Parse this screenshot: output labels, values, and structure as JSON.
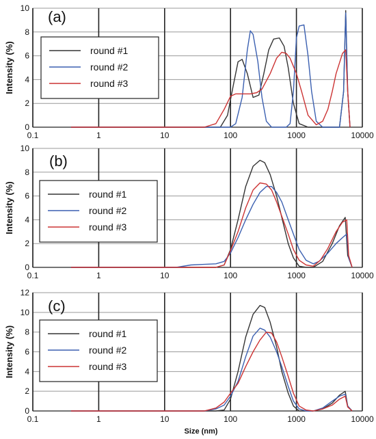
{
  "chart_data": [
    {
      "type": "line",
      "panel_label": "(a)",
      "ylabel": "Intensity (%)",
      "xlabel": "",
      "xscale": "log",
      "xlim": [
        0.1,
        10000
      ],
      "ylim": [
        0,
        10
      ],
      "x_ticks": [
        "0.1",
        "1",
        "10",
        "100",
        "1000",
        "10000"
      ],
      "y_ticks": [
        "0",
        "2",
        "4",
        "6",
        "8",
        "10"
      ],
      "grid": true,
      "legend_placement": "left",
      "series": [
        {
          "name": "round #1",
          "color": "#333333",
          "x": [
            0.38,
            40,
            70,
            90,
            110,
            130,
            150,
            180,
            220,
            270,
            320,
            380,
            450,
            550,
            650,
            750,
            900,
            1100,
            1500,
            2000,
            3000,
            4500,
            5200,
            5600,
            6000,
            6500
          ],
          "y": [
            0,
            0,
            0,
            1.0,
            3.5,
            5.5,
            5.7,
            4.5,
            2.5,
            2.7,
            4.5,
            6.5,
            7.4,
            7.5,
            6.8,
            5.0,
            2.0,
            0.3,
            0,
            0,
            0,
            0,
            3.0,
            9.8,
            3.0,
            0
          ]
        },
        {
          "name": "round #2",
          "color": "#3a5fb0",
          "x": [
            0.38,
            100,
            120,
            150,
            180,
            200,
            220,
            260,
            300,
            350,
            420,
            500,
            600,
            700,
            800,
            900,
            1000,
            1100,
            1300,
            1500,
            1700,
            2000,
            2500,
            4500,
            5200,
            5600,
            6000,
            6500
          ],
          "y": [
            0,
            0,
            0.3,
            2.5,
            6.5,
            8.1,
            7.8,
            5.5,
            2.5,
            0.5,
            0,
            0,
            0,
            0,
            0.3,
            3.0,
            7.5,
            8.5,
            8.6,
            6.0,
            3.0,
            0.5,
            0,
            0,
            3.0,
            9.6,
            3.0,
            0
          ]
        },
        {
          "name": "round #3",
          "color": "#cc3333",
          "x": [
            0.38,
            40,
            60,
            80,
            100,
            120,
            150,
            200,
            250,
            300,
            400,
            500,
            600,
            700,
            800,
            1000,
            1200,
            1500,
            2000,
            2500,
            3000,
            3500,
            4000,
            5000,
            5600,
            6000,
            6500
          ],
          "y": [
            0,
            0,
            0.3,
            1.5,
            2.6,
            2.8,
            2.8,
            2.8,
            2.9,
            3.2,
            4.5,
            5.8,
            6.3,
            6.2,
            5.8,
            4.5,
            3.0,
            1.0,
            0.2,
            0.5,
            1.5,
            3.0,
            4.5,
            6.2,
            6.5,
            3.0,
            0
          ]
        }
      ]
    },
    {
      "type": "line",
      "panel_label": "(b)",
      "ylabel": "Intensity (%)",
      "xlabel": "",
      "xscale": "log",
      "xlim": [
        0.1,
        10000
      ],
      "ylim": [
        0,
        10
      ],
      "x_ticks": [
        "0.1",
        "1",
        "10",
        "100",
        "1000",
        "10000"
      ],
      "y_ticks": [
        "0",
        "2",
        "4",
        "6",
        "8",
        "10"
      ],
      "grid": true,
      "legend_placement": "left",
      "series": [
        {
          "name": "round #1",
          "color": "#333333",
          "x": [
            0.38,
            40,
            60,
            80,
            100,
            130,
            170,
            220,
            280,
            330,
            400,
            500,
            600,
            750,
            900,
            1100,
            1400,
            1800,
            2500,
            3500,
            4500,
            5500,
            6000,
            7000
          ],
          "y": [
            0,
            0,
            0,
            0.2,
            1.5,
            4.0,
            6.8,
            8.5,
            9.0,
            8.8,
            7.8,
            6.0,
            4.2,
            2.0,
            0.8,
            0.1,
            0,
            0,
            0.5,
            2.0,
            3.5,
            4.2,
            1.0,
            0
          ]
        },
        {
          "name": "round #2",
          "color": "#3a5fb0",
          "x": [
            0.38,
            15,
            25,
            40,
            60,
            80,
            100,
            130,
            170,
            220,
            280,
            350,
            420,
            500,
            600,
            750,
            900,
            1100,
            1400,
            1800,
            2200,
            3000,
            4000,
            5000,
            5800,
            6200,
            7000
          ],
          "y": [
            0,
            0,
            0.2,
            0.25,
            0.3,
            0.5,
            1.2,
            2.5,
            4.0,
            5.3,
            6.3,
            6.8,
            6.8,
            6.3,
            5.5,
            4.0,
            2.8,
            1.5,
            0.6,
            0.3,
            0.5,
            1.2,
            2.0,
            2.5,
            2.8,
            0.8,
            0
          ]
        },
        {
          "name": "round #3",
          "color": "#cc3333",
          "x": [
            0.38,
            40,
            60,
            80,
            100,
            130,
            170,
            220,
            280,
            350,
            420,
            500,
            600,
            750,
            900,
            1100,
            1400,
            1800,
            2300,
            3000,
            4000,
            5000,
            5800,
            6200,
            7000
          ],
          "y": [
            0,
            0,
            0,
            0.2,
            1.4,
            3.0,
            5.0,
            6.5,
            7.1,
            7.0,
            6.5,
            5.5,
            4.3,
            2.8,
            1.5,
            0.6,
            0.2,
            0.1,
            0.6,
            1.6,
            3.0,
            3.8,
            4.0,
            1.0,
            0
          ]
        }
      ]
    },
    {
      "type": "line",
      "panel_label": "(c)",
      "ylabel": "Intensity (%)",
      "xlabel": "Size (nm)",
      "xscale": "log",
      "xlim": [
        0.1,
        10000
      ],
      "ylim": [
        0,
        12
      ],
      "x_ticks": [
        "0.1",
        "1",
        "10",
        "100",
        "1000",
        "10000"
      ],
      "y_ticks": [
        "0",
        "2",
        "4",
        "6",
        "8",
        "10",
        "12"
      ],
      "grid": true,
      "legend_placement": "left",
      "series": [
        {
          "name": "round #1",
          "color": "#333333",
          "x": [
            0.38,
            40,
            60,
            80,
            100,
            130,
            170,
            220,
            280,
            330,
            400,
            500,
            600,
            750,
            900,
            1100,
            1400,
            1800,
            2500,
            3500,
            4500,
            5500,
            6000,
            7000
          ],
          "y": [
            0,
            0,
            0,
            0.1,
            1.2,
            4.0,
            7.5,
            9.8,
            10.7,
            10.5,
            9.0,
            6.5,
            4.0,
            1.8,
            0.5,
            0,
            0,
            0,
            0.2,
            0.8,
            1.6,
            2.0,
            0.5,
            0
          ]
        },
        {
          "name": "round #2",
          "color": "#3a5fb0",
          "x": [
            0.38,
            40,
            60,
            80,
            100,
            130,
            170,
            220,
            280,
            330,
            400,
            500,
            600,
            750,
            900,
            1100,
            1400,
            1800,
            2500,
            3500,
            4500,
            5500,
            6000,
            7000
          ],
          "y": [
            0,
            0,
            0.2,
            0.6,
            1.5,
            3.0,
            5.5,
            7.6,
            8.4,
            8.2,
            7.5,
            6.0,
            4.5,
            2.5,
            1.0,
            0.2,
            0,
            0,
            0.3,
            1.0,
            1.5,
            1.7,
            0.5,
            0
          ]
        },
        {
          "name": "round #3",
          "color": "#cc3333",
          "x": [
            0.38,
            40,
            60,
            80,
            100,
            130,
            170,
            220,
            280,
            350,
            420,
            500,
            600,
            750,
            900,
            1100,
            1400,
            1800,
            2500,
            3500,
            4500,
            5500,
            6000,
            7000
          ],
          "y": [
            0,
            0,
            0.3,
            0.9,
            1.8,
            2.8,
            4.5,
            6.0,
            7.2,
            8.0,
            7.9,
            7.0,
            5.5,
            3.5,
            1.8,
            0.5,
            0.1,
            0,
            0.2,
            0.6,
            1.2,
            1.5,
            0.4,
            0
          ]
        }
      ]
    }
  ]
}
